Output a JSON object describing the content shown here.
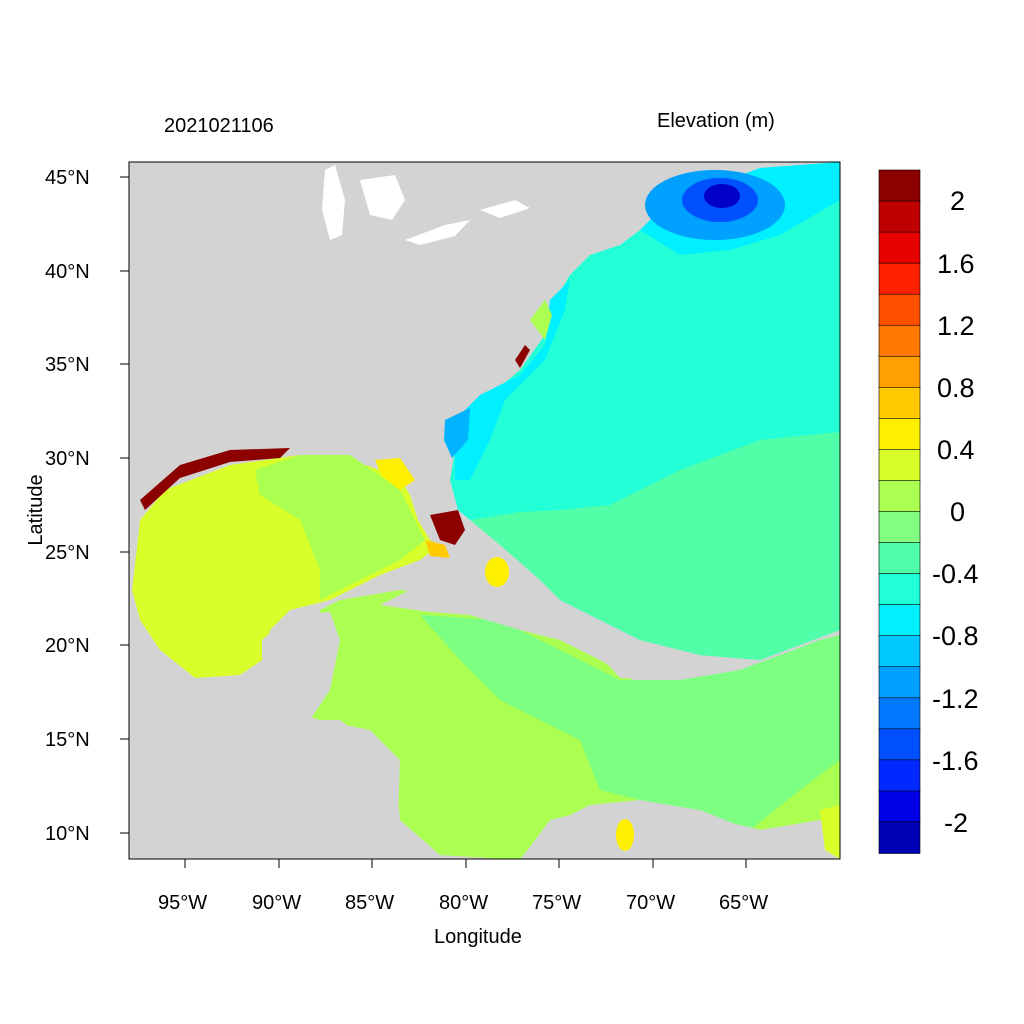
{
  "header": {
    "timestamp": "2021021106",
    "variable_label": "Elevation (m)"
  },
  "axes": {
    "xlabel": "Longitude",
    "ylabel": "Latitude",
    "x_ticks": [
      "95°W",
      "90°W",
      "85°W",
      "80°W",
      "75°W",
      "70°W",
      "65°W"
    ],
    "y_ticks": [
      "45°N",
      "40°N",
      "35°N",
      "30°N",
      "25°N",
      "20°N",
      "15°N",
      "10°N"
    ],
    "x_tick_values": [
      -95,
      -90,
      -85,
      -80,
      -75,
      -70,
      -65
    ],
    "y_tick_values": [
      45,
      40,
      35,
      30,
      25,
      20,
      15,
      10
    ],
    "lon_range": [
      -98,
      -60.5
    ],
    "lat_range": [
      8.5,
      46
    ]
  },
  "colorbar": {
    "labels": [
      "2",
      "1.6",
      "1.2",
      "0.8",
      "0.4",
      "0",
      "-0.4",
      "-0.8",
      "-1.2",
      "-1.6",
      "-2"
    ],
    "colors_top_to_bottom": [
      "#8c0000",
      "#bf0000",
      "#e60000",
      "#ff2000",
      "#ff5000",
      "#ff7800",
      "#ff9f00",
      "#ffcb00",
      "#fff000",
      "#d8ff2a",
      "#aaff50",
      "#80ff80",
      "#50ffaa",
      "#20ffd8",
      "#00f0ff",
      "#00c8ff",
      "#00a0ff",
      "#0078ff",
      "#0050ff",
      "#0028ff",
      "#0000e6",
      "#0000b4"
    ]
  },
  "colors": {
    "land": "#d3d3d3",
    "ocean_atlantic": "#23ffd6",
    "gulf": "#d8ff2a",
    "caribbean": "#aaff50",
    "caribbean_east": "#7dff82",
    "bahamas": "#50ffa8",
    "nw_atlantic_deep": "#00c8ff",
    "gom_coast": "#8c0000"
  }
}
